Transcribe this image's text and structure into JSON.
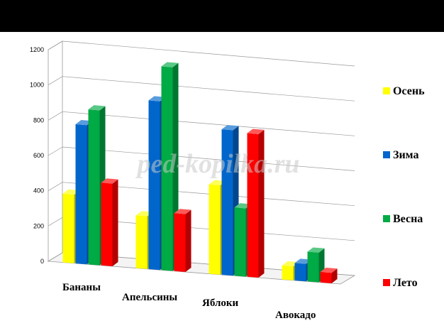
{
  "watermark": "ped-kopilka.ru",
  "chart_data": {
    "type": "bar",
    "categories": [
      "Бананы",
      "Апельсины",
      "Яблоки",
      "Авокадо"
    ],
    "series": [
      {
        "name": "Осень",
        "color": "#FFFF00",
        "values": [
          390,
          300,
          510,
          80
        ]
      },
      {
        "name": "Зима",
        "color": "#0066CC",
        "values": [
          790,
          960,
          830,
          100
        ]
      },
      {
        "name": "Весна",
        "color": "#00AA44",
        "values": [
          880,
          1160,
          390,
          170
        ]
      },
      {
        "name": "Лето",
        "color": "#FF0000",
        "values": [
          470,
          330,
          820,
          60
        ]
      }
    ],
    "yticks": [
      "0",
      "200",
      "400",
      "600",
      "800",
      "1000",
      "1200"
    ],
    "ylim": [
      0,
      1200
    ],
    "grid": true,
    "legend_position": "right",
    "title": "",
    "xlabel": "",
    "ylabel": ""
  }
}
